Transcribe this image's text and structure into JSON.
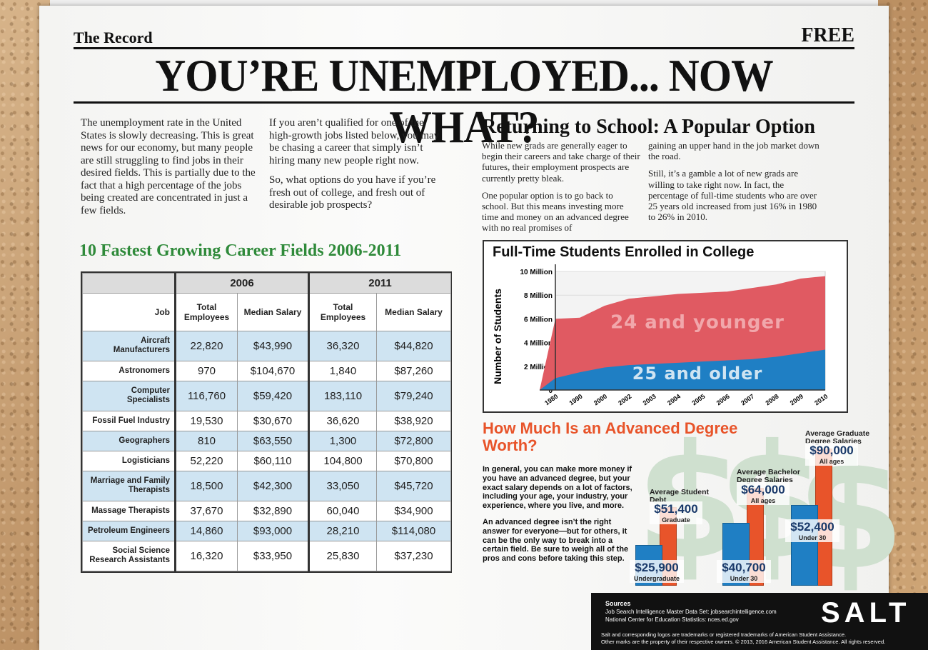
{
  "masthead": {
    "name": "The Record",
    "price": "FREE"
  },
  "headline": "YOU’RE UNEMPLOYED... NOW WHAT?",
  "intro": {
    "col1": "The unemployment rate in the United States is slowly decreasing. This is great news for our economy, but many people are still struggling to find jobs in their desired fields. This is partially due to the fact that a high percentage of the jobs being created are concentrated in just a few fields.",
    "col2_p1": "If you aren’t qualified for one of the high-growth jobs listed below, you may be chasing a career that simply isn’t hiring many new people right now.",
    "col2_p2": "So, what options do you have if you’re fresh out of college, and fresh out of desirable job prospects?"
  },
  "school": {
    "title": "Returning to School: A Popular Option",
    "p1": "While new grads are generally eager to begin their careers and take charge of their futures, their employment prospects are currently pretty bleak.",
    "p2": "One popular option is to go back to school. But this means investing more time and money on an advanced degree with no real promises of",
    "p3": "gaining an upper hand in the job market down the road.",
    "p4": "Still, it’s a gamble a lot of new grads are willing to take right now. In fact, the percentage of full-time students who are over 25 years old increased from just 16% in 1980 to 26% in 2010."
  },
  "table": {
    "title": "10 Fastest Growing Career Fields 2006-2011",
    "year1": "2006",
    "year2": "2011",
    "headers": [
      "Job",
      "Total Employees",
      "Median Salary",
      "Total Employees",
      "Median Salary"
    ],
    "rows": [
      [
        "Aircraft Manufacturers",
        "22,820",
        "$43,990",
        "36,320",
        "$44,820"
      ],
      [
        "Astronomers",
        "970",
        "$104,670",
        "1,840",
        "$87,260"
      ],
      [
        "Computer Specialists",
        "116,760",
        "$59,420",
        "183,110",
        "$79,240"
      ],
      [
        "Fossil Fuel Industry",
        "19,530",
        "$30,670",
        "36,620",
        "$38,920"
      ],
      [
        "Geographers",
        "810",
        "$63,550",
        "1,300",
        "$72,800"
      ],
      [
        "Logisticians",
        "52,220",
        "$60,110",
        "104,800",
        "$70,800"
      ],
      [
        "Marriage and Family Therapists",
        "18,500",
        "$42,300",
        "33,050",
        "$45,720"
      ],
      [
        "Massage Therapists",
        "37,670",
        "$32,890",
        "60,040",
        "$34,900"
      ],
      [
        "Petroleum Engineers",
        "14,860",
        "$93,000",
        "28,210",
        "$114,080"
      ],
      [
        "Social Science Research Assistants",
        "16,320",
        "$33,950",
        "25,830",
        "$37,230"
      ]
    ]
  },
  "chart_data": {
    "type": "area",
    "title": "Full-Time Students Enrolled in College",
    "ylabel": "Number of Students",
    "x": [
      "1980",
      "1990",
      "2000",
      "2002",
      "2003",
      "2004",
      "2005",
      "2006",
      "2007",
      "2008",
      "2009",
      "2010"
    ],
    "y_ticks": [
      "0",
      "2 Million",
      "4 Million",
      "6 Million",
      "8 Million",
      "10 Million"
    ],
    "ylim": [
      0,
      10
    ],
    "series": [
      {
        "name": "25 and older",
        "color": "#1f7fc4",
        "values": [
          1.0,
          1.5,
          1.9,
          2.1,
          2.2,
          2.3,
          2.4,
          2.5,
          2.6,
          2.8,
          3.1,
          3.4
        ]
      },
      {
        "name": "24 and younger",
        "color": "#e05a62",
        "values": [
          6.0,
          6.1,
          7.1,
          7.7,
          7.9,
          8.1,
          8.2,
          8.3,
          8.6,
          8.9,
          9.4,
          9.6
        ]
      }
    ]
  },
  "degree": {
    "title": "How Much Is an Advanced Degree Worth?",
    "p1": "In general, you can make more money if you have an advanced degree, but your exact salary depends on a lot of factors, including your age, your industry, your experience, where you live, and more.",
    "p2": "An advanced degree isn’t the right answer for everyone—but for others, it can be the only way to break into a certain field. Be sure to weigh all of the pros and cons before taking this step.",
    "groups": [
      {
        "label": "Average Student Debt",
        "blue_value": "$25,900",
        "blue_sub": "Undergraduate",
        "orange_value": "$51,400",
        "orange_sub": "Graduate"
      },
      {
        "label": "Average Bachelor Degree Salaries",
        "blue_value": "$40,700",
        "blue_sub": "Under 30",
        "orange_value": "$64,000",
        "orange_sub": "All ages"
      },
      {
        "label": "Average Graduate Degree Salaries",
        "blue_value": "$52,400",
        "blue_sub": "Under 30",
        "orange_value": "$90,000",
        "orange_sub": "All ages"
      }
    ],
    "bar_values": {
      "blue": [
        25900,
        40700,
        52400
      ],
      "orange": [
        51400,
        64000,
        90000
      ]
    }
  },
  "footer": {
    "sources_heading": "Sources",
    "source1": "Job Search Intelligence Master Data Set: jobsearchintelligence.com",
    "source2": "National Center for Education Statistics: nces.ed.gov",
    "logo": "SALT",
    "legal1": "Salt and corresponding logos are trademarks or registered trademarks of American Student Assistance.",
    "legal2": "Other marks are the property of their respective owners. © 2013, 2016 American Student Assistance. All rights reserved."
  }
}
